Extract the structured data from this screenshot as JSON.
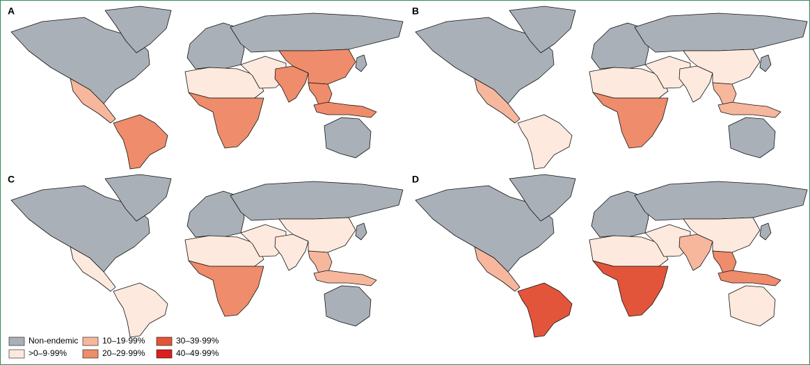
{
  "panels": [
    {
      "label": "A"
    },
    {
      "label": "B"
    },
    {
      "label": "C"
    },
    {
      "label": "D"
    }
  ],
  "legend": {
    "items": [
      {
        "label": "Non-endemic",
        "color": "#a9b0b7"
      },
      {
        "label": ">0–9·99%",
        "color": "#fde9dd"
      },
      {
        "label": "10–19·99%",
        "color": "#f6b79d"
      },
      {
        "label": "20–29·99%",
        "color": "#ee8c6b"
      },
      {
        "label": "30–39·99%",
        "color": "#e3553a"
      },
      {
        "label": "40–49·99%",
        "color": "#dc1f1f"
      }
    ]
  }
}
